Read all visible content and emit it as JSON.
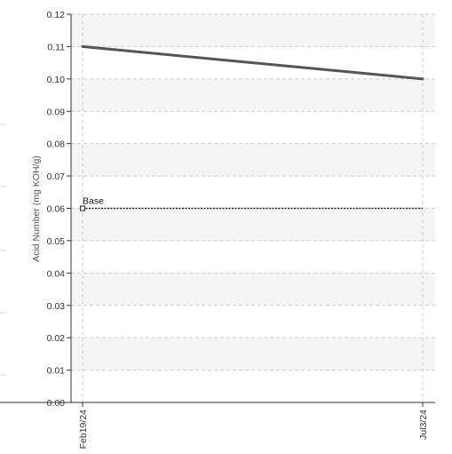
{
  "chart_data": {
    "type": "line",
    "title": "",
    "xlabel": "",
    "ylabel": "Acid Number (mg KOH/g)",
    "categories": [
      "Feb19/24",
      "Jul3/24"
    ],
    "series": [
      {
        "values": [
          0.11,
          0.1
        ],
        "color": "#555555"
      }
    ],
    "baseline": {
      "label": "Base",
      "value": 0.06,
      "color": "#222222"
    },
    "ylim": [
      0,
      0.12
    ],
    "yticks": [
      0.0,
      0.01,
      0.02,
      0.03,
      0.04,
      0.05,
      0.06,
      0.07,
      0.08,
      0.09,
      0.1,
      0.11,
      0.12
    ],
    "ytick_format_decimals": 2,
    "grid": true,
    "banded_background": true
  }
}
